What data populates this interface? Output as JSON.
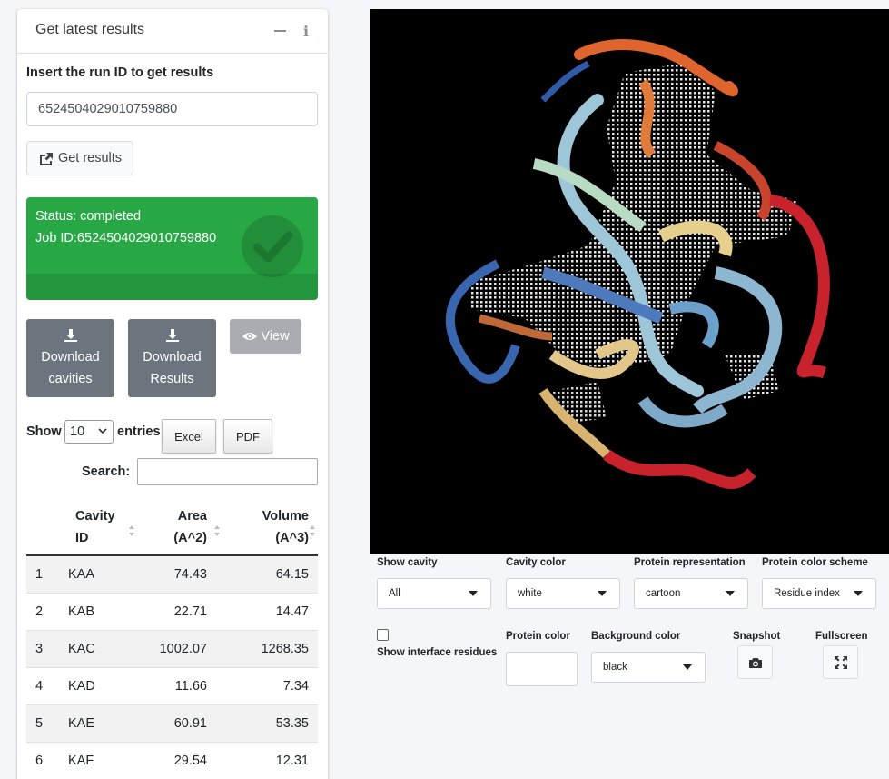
{
  "panel": {
    "title": "Get latest results",
    "min_tool": "minimize",
    "info_tool": "i",
    "runid_label": "Insert the run ID to get results",
    "runid_value": "6524504029010759880",
    "get_results_label": "Get results",
    "status_line": "Status: completed",
    "job_line": "Job ID:6524504029010759880",
    "download_cavities": [
      "Download",
      "cavities"
    ],
    "download_results": [
      "Download",
      "Results"
    ],
    "view_label": "View",
    "show_label": "Show",
    "show_value": "10",
    "entries_label": "entries",
    "excel_label": "Excel",
    "pdf_label": "PDF",
    "search_label": "Search:"
  },
  "table": {
    "headers": [
      {
        "l1": "",
        "l2": ""
      },
      {
        "l1": "Cavity",
        "l2": "ID"
      },
      {
        "l1": "Area",
        "l2": "(A^2)"
      },
      {
        "l1": "Volume",
        "l2": "(A^3)"
      }
    ],
    "rows": [
      [
        "1",
        "KAA",
        "74.43",
        "64.15"
      ],
      [
        "2",
        "KAB",
        "22.71",
        "14.47"
      ],
      [
        "3",
        "KAC",
        "1002.07",
        "1268.35"
      ],
      [
        "4",
        "KAD",
        "11.66",
        "7.34"
      ],
      [
        "5",
        "KAE",
        "60.91",
        "53.35"
      ],
      [
        "6",
        "KAF",
        "29.54",
        "12.31"
      ]
    ]
  },
  "controls": {
    "show_cavity_label": "Show cavity",
    "show_cavity_value": "All",
    "cavity_color_label": "Cavity color",
    "cavity_color_value": "white",
    "protein_rep_label": "Protein representation",
    "protein_rep_value": "cartoon",
    "protein_scheme_label": "Protein color scheme",
    "protein_scheme_value": "Residue index",
    "interface_label": "Show interface residues",
    "protein_color_label": "Protein color",
    "bg_color_label": "Background color",
    "bg_color_value": "black",
    "snapshot_label": "Snapshot",
    "fullscreen_label": "Fullscreen"
  },
  "colors": {
    "status_green": "#28a745",
    "button_gray": "#6c757d",
    "viewer_bg": "#000000"
  },
  "icons": [
    "external-link-icon",
    "check-circle-icon",
    "download-icon",
    "eye-icon",
    "camera-icon",
    "expand-icon",
    "sort-icon",
    "caret-down-icon"
  ]
}
